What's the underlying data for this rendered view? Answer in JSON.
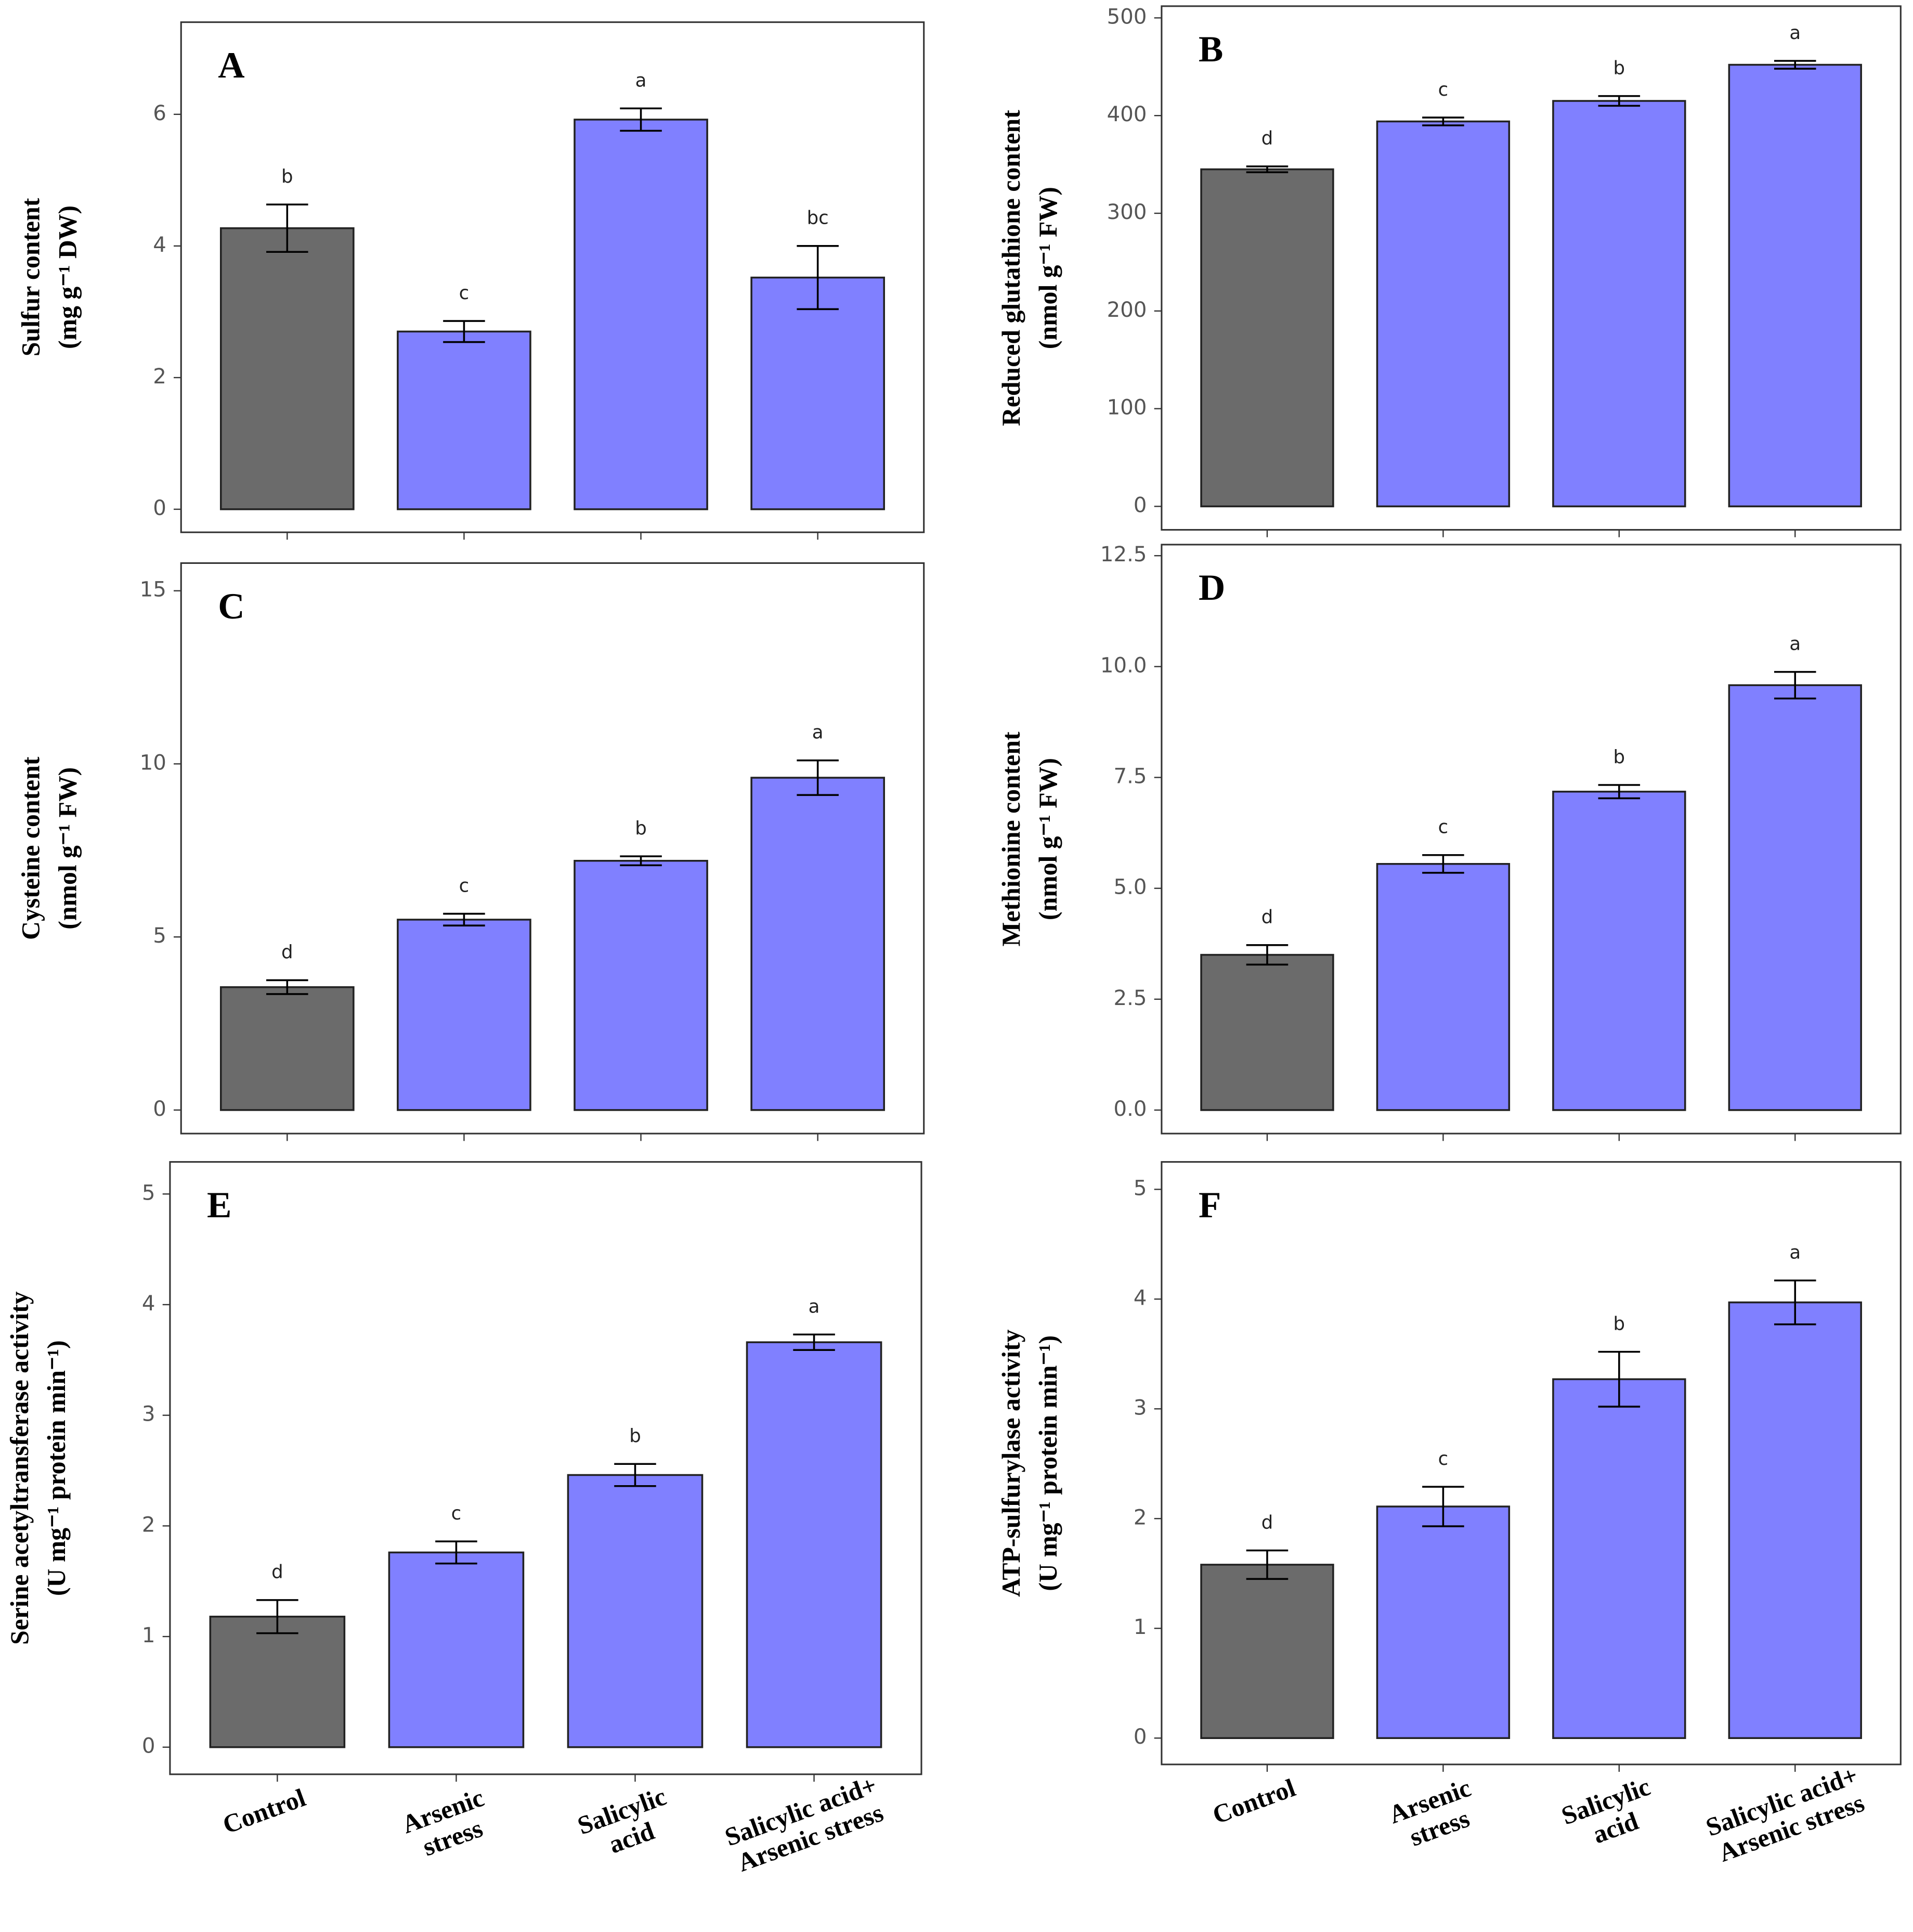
{
  "chart_data": [
    {
      "type": "bar",
      "panel": "A",
      "ylabel": [
        "Sulfur content",
        "(mg g⁻¹ DW)"
      ],
      "categories": [
        null,
        null,
        null,
        null
      ],
      "values": [
        4.27,
        2.7,
        5.92,
        3.52
      ],
      "errors": [
        0.36,
        0.16,
        0.17,
        0.48
      ],
      "letters": [
        "b",
        "c",
        "a",
        "bc"
      ],
      "colors": [
        "#6b6b6b",
        "#8080ff",
        "#8080ff",
        "#8080ff"
      ],
      "ylim": [
        -0.35,
        7.4
      ],
      "yticks": [
        0,
        2,
        4,
        6
      ]
    },
    {
      "type": "bar",
      "panel": "B",
      "ylabel": [
        "Reduced glutathione content",
        "(nmol g⁻¹ FW)"
      ],
      "categories": [
        null,
        null,
        null,
        null
      ],
      "values": [
        345,
        394,
        415,
        452
      ],
      "errors": [
        3,
        4,
        5,
        4
      ],
      "letters": [
        "d",
        "c",
        "b",
        "a"
      ],
      "colors": [
        "#6b6b6b",
        "#8080ff",
        "#8080ff",
        "#8080ff"
      ],
      "ylim": [
        -24,
        512
      ],
      "yticks": [
        0,
        100,
        200,
        300,
        400,
        500
      ]
    },
    {
      "type": "bar",
      "panel": "C",
      "ylabel": [
        "Cysteine content",
        "(nmol g⁻¹ FW)"
      ],
      "categories": [
        null,
        null,
        null,
        null
      ],
      "values": [
        3.55,
        5.5,
        7.2,
        9.6
      ],
      "errors": [
        0.2,
        0.17,
        0.13,
        0.5
      ],
      "letters": [
        "d",
        "c",
        "b",
        "a"
      ],
      "colors": [
        "#6b6b6b",
        "#8080ff",
        "#8080ff",
        "#8080ff"
      ],
      "ylim": [
        -0.68,
        15.8
      ],
      "yticks": [
        0,
        5,
        10,
        15
      ]
    },
    {
      "type": "bar",
      "panel": "D",
      "ylabel": [
        "Methionine content",
        "(nmol g⁻¹ FW)"
      ],
      "categories": [
        null,
        null,
        null,
        null
      ],
      "values": [
        3.5,
        5.55,
        7.18,
        9.58
      ],
      "errors": [
        0.22,
        0.2,
        0.15,
        0.3
      ],
      "letters": [
        "d",
        "c",
        "b",
        "a"
      ],
      "colors": [
        "#6b6b6b",
        "#8080ff",
        "#8080ff",
        "#8080ff"
      ],
      "ylim": [
        -0.53,
        12.75
      ],
      "yticks": [
        {
          "value": 0,
          "label": "0.0"
        },
        2.5,
        {
          "value": 5,
          "label": "5.0"
        },
        7.5,
        {
          "value": 10,
          "label": "10.0"
        },
        12.5
      ]
    },
    {
      "type": "bar",
      "panel": "E",
      "ylabel": [
        "Serine acetyltransferase activity",
        "(U mg⁻¹ protein min⁻¹)"
      ],
      "categories": [
        "Control",
        "Arsenic\nstress",
        "Salicylic\nacid",
        "Salicylic acid+\nArsenic stress"
      ],
      "values": [
        1.18,
        1.76,
        2.46,
        3.66
      ],
      "errors": [
        0.15,
        0.1,
        0.1,
        0.07
      ],
      "letters": [
        "d",
        "c",
        "b",
        "a"
      ],
      "colors": [
        "#6b6b6b",
        "#8080ff",
        "#8080ff",
        "#8080ff"
      ],
      "ylim": [
        -0.245,
        5.29
      ],
      "yticks": [
        0,
        1,
        2,
        3,
        4,
        5
      ]
    },
    {
      "type": "bar",
      "panel": "F",
      "ylabel": [
        "ATP-sulfurylase activity",
        "(U mg⁻¹ protein min⁻¹)"
      ],
      "categories": [
        "Control",
        "Arsenic\nstress",
        "Salicylic\nacid",
        "Salicylic acid+\nArsenic stress"
      ],
      "values": [
        1.58,
        2.11,
        3.27,
        3.97
      ],
      "errors": [
        0.13,
        0.18,
        0.25,
        0.2
      ],
      "letters": [
        "d",
        "c",
        "b",
        "a"
      ],
      "colors": [
        "#6b6b6b",
        "#8080ff",
        "#8080ff",
        "#8080ff"
      ],
      "ylim": [
        -0.24,
        5.25
      ],
      "yticks": [
        0,
        1,
        2,
        3,
        4,
        5
      ]
    }
  ]
}
